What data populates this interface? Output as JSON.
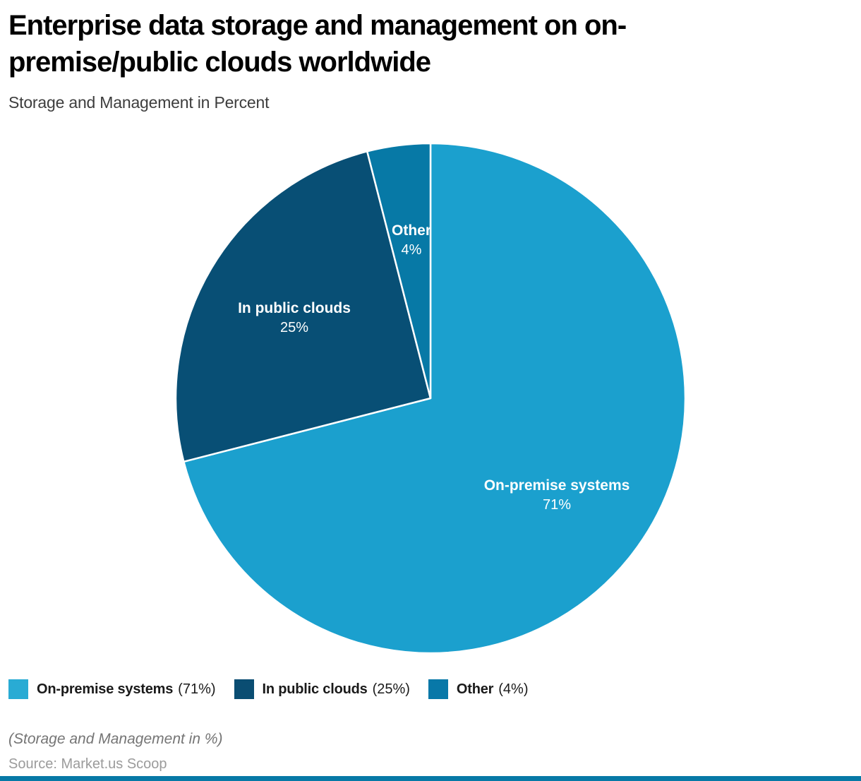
{
  "header": {
    "title": "Enterprise data storage and management on on-premise/public clouds worldwide",
    "subtitle": "Storage and Management in Percent"
  },
  "chart_data": {
    "type": "pie",
    "title": "Enterprise data storage and management on on-premise/public clouds worldwide",
    "subtitle": "Storage and Management in Percent",
    "unit": "percent",
    "start_angle": "12 o'clock",
    "direction": "clockwise",
    "legend_position": "bottom",
    "slices": [
      {
        "label": "On-premise systems",
        "value": 71,
        "pct_label": "71%",
        "color": "#1ba0ce"
      },
      {
        "label": "In public clouds",
        "value": 25,
        "pct_label": "25%",
        "color": "#084f75"
      },
      {
        "label": "Other",
        "value": 4,
        "pct_label": "4%",
        "color": "#0779a6"
      }
    ]
  },
  "legend": {
    "items": [
      {
        "label": "On-premise systems",
        "value_label": "(71%)",
        "color": "#29abd4"
      },
      {
        "label": "In public clouds",
        "value_label": "(25%)",
        "color": "#0a4d72"
      },
      {
        "label": "Other",
        "value_label": "(4%)",
        "color": "#0878a8"
      }
    ]
  },
  "footer": {
    "caption": "(Storage and Management in %)",
    "source": "Source: Market.us Scoop",
    "accent_bar_color": "#0779a6"
  }
}
